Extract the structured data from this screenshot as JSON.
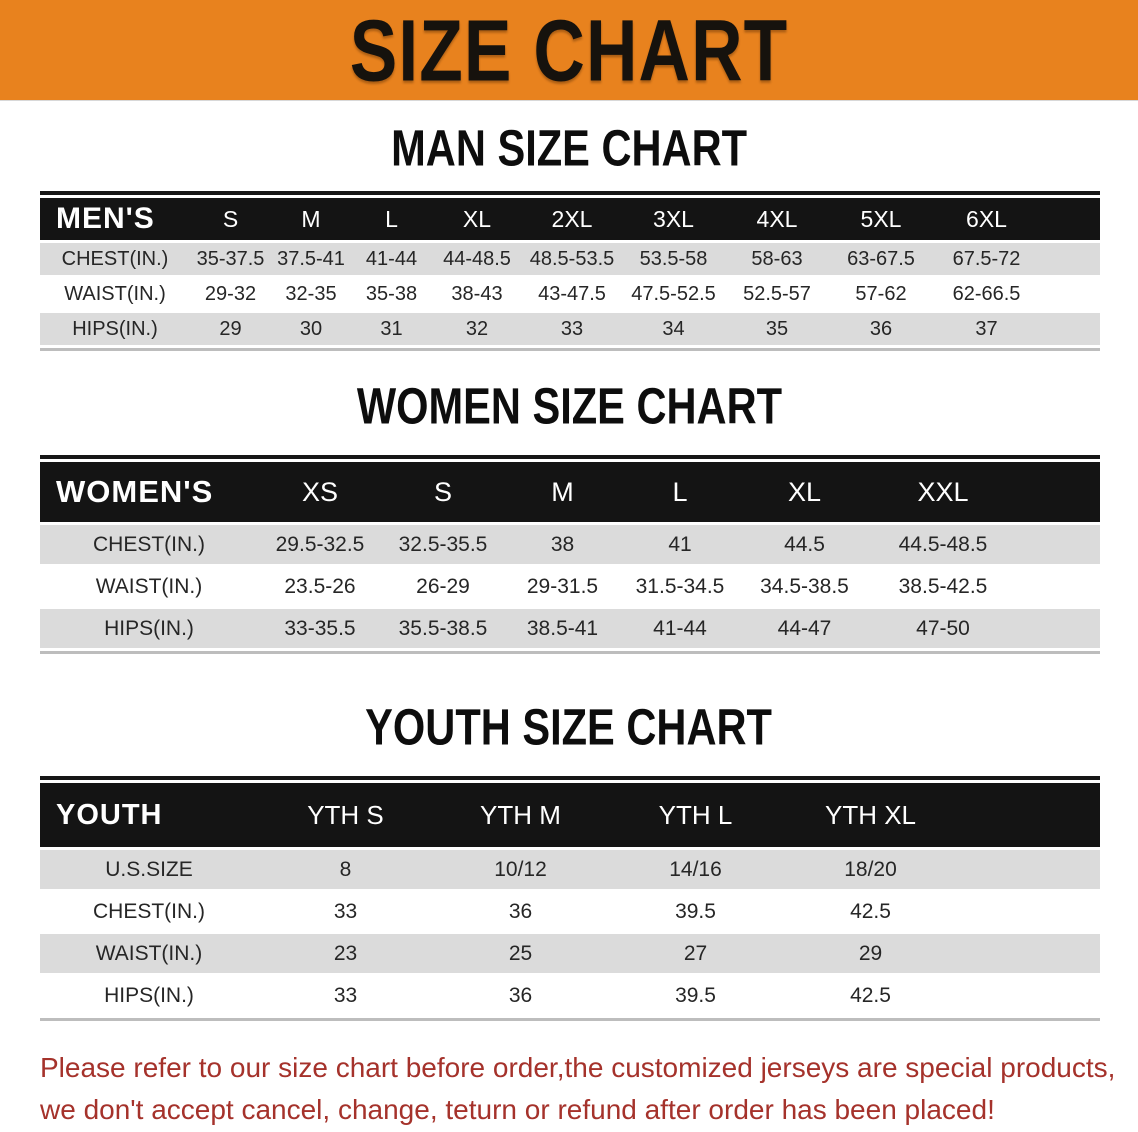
{
  "banner": {
    "title": "SIZE CHART"
  },
  "chart_data": [
    {
      "type": "table",
      "title": "MAN SIZE CHART",
      "header_label": "MEN'S",
      "columns": [
        "S",
        "M",
        "L",
        "XL",
        "2XL",
        "3XL",
        "4XL",
        "5XL",
        "6XL"
      ],
      "rows": [
        {
          "label": "CHEST(IN.)",
          "values": [
            "35-37.5",
            "37.5-41",
            "41-44",
            "44-48.5",
            "48.5-53.5",
            "53.5-58",
            "58-63",
            "63-67.5",
            "67.5-72"
          ]
        },
        {
          "label": "WAIST(IN.)",
          "values": [
            "29-32",
            "32-35",
            "35-38",
            "38-43",
            "43-47.5",
            "47.5-52.5",
            "52.5-57",
            "57-62",
            "62-66.5"
          ]
        },
        {
          "label": "HIPS(IN.)",
          "values": [
            "29",
            "30",
            "31",
            "32",
            "33",
            "34",
            "35",
            "36",
            "37"
          ]
        }
      ]
    },
    {
      "type": "table",
      "title": "WOMEN SIZE CHART",
      "header_label": "WOMEN'S",
      "columns": [
        "XS",
        "S",
        "M",
        "L",
        "XL",
        "XXL"
      ],
      "rows": [
        {
          "label": "CHEST(IN.)",
          "values": [
            "29.5-32.5",
            "32.5-35.5",
            "38",
            "41",
            "44.5",
            "44.5-48.5"
          ]
        },
        {
          "label": "WAIST(IN.)",
          "values": [
            "23.5-26",
            "26-29",
            "29-31.5",
            "31.5-34.5",
            "34.5-38.5",
            "38.5-42.5"
          ]
        },
        {
          "label": "HIPS(IN.)",
          "values": [
            "33-35.5",
            "35.5-38.5",
            "38.5-41",
            "41-44",
            "44-47",
            "47-50"
          ]
        }
      ]
    },
    {
      "type": "table",
      "title": "YOUTH SIZE CHART",
      "header_label": "YOUTH",
      "columns": [
        "YTH S",
        "YTH M",
        "YTH L",
        "YTH XL"
      ],
      "rows": [
        {
          "label": "U.S.SIZE",
          "values": [
            "8",
            "10/12",
            "14/16",
            "18/20"
          ]
        },
        {
          "label": "CHEST(IN.)",
          "values": [
            "33",
            "36",
            "39.5",
            "42.5"
          ]
        },
        {
          "label": "WAIST(IN.)",
          "values": [
            "23",
            "25",
            "27",
            "29"
          ]
        },
        {
          "label": "HIPS(IN.)",
          "values": [
            "33",
            "36",
            "39.5",
            "42.5"
          ]
        }
      ]
    }
  ],
  "disclaimer": {
    "line1": "Please refer to our size chart before order,the customized jerseys are special products,",
    "line2": "we don't accept cancel, change, teturn or refund after order has been placed!"
  },
  "colors": {
    "banner_bg": "#E8821E",
    "banner_title_text": "#16120D",
    "table_header_bg": "#141414",
    "table_header_text": "#FFFFFF",
    "row_stripe_gray": "#DBDBDB",
    "row_stripe_white": "#FFFFFF",
    "disclaimer_text": "#A5322B",
    "page_background": "#FFFFFF"
  }
}
